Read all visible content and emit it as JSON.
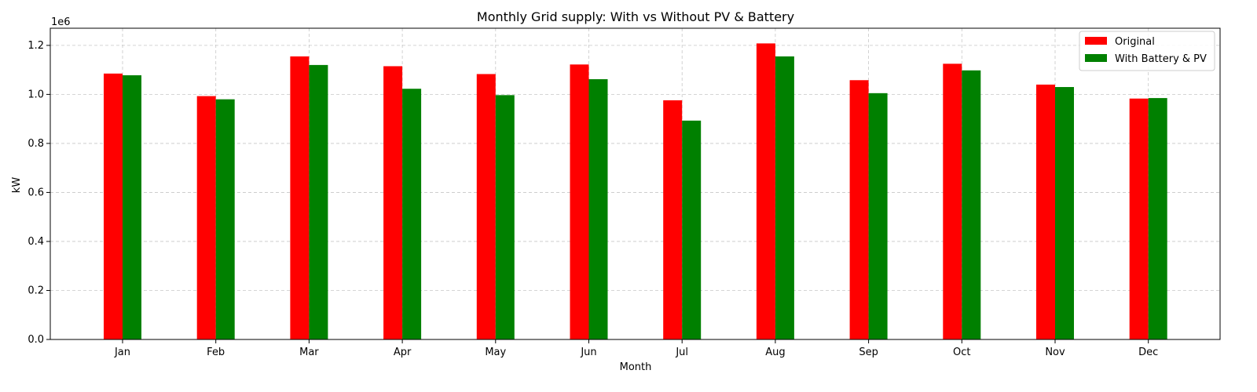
{
  "chart_data": {
    "type": "bar",
    "title": "Monthly Grid supply: With vs Without PV & Battery",
    "xlabel": "Month",
    "ylabel": "kW",
    "y_offset_text": "1e6",
    "ylim": [
      0,
      1.27
    ],
    "yticks": [
      "0.0",
      "0.2",
      "0.4",
      "0.6",
      "0.8",
      "1.0",
      "1.2"
    ],
    "ytick_values": [
      0,
      0.2,
      0.4,
      0.6,
      0.8,
      1.0,
      1.2
    ],
    "grid": true,
    "legend_position": "top-right",
    "categories": [
      "Jan",
      "Feb",
      "Mar",
      "Apr",
      "May",
      "Jun",
      "Jul",
      "Aug",
      "Sep",
      "Oct",
      "Nov",
      "Dec"
    ],
    "series": [
      {
        "name": "Original",
        "color": "#ff0000",
        "values": [
          1.085,
          0.993,
          1.155,
          1.115,
          1.083,
          1.122,
          0.976,
          1.208,
          1.058,
          1.125,
          1.04,
          0.983
        ]
      },
      {
        "name": "With Battery & PV",
        "color": "#008000",
        "values": [
          1.078,
          0.98,
          1.12,
          1.023,
          0.997,
          1.062,
          0.893,
          1.155,
          1.005,
          1.098,
          1.03,
          0.985
        ]
      }
    ]
  }
}
